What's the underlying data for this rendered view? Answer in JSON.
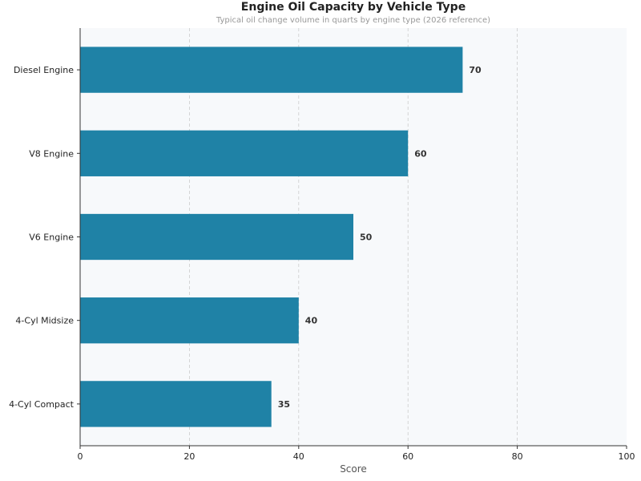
{
  "chart_data": {
    "type": "bar",
    "orientation": "horizontal",
    "title": "Engine Oil Capacity by Vehicle Type",
    "subtitle": "Typical oil change volume in quarts by engine type (2026 reference)",
    "xlabel": "Score",
    "ylabel": "",
    "xlim": [
      0,
      100
    ],
    "xticks": [
      0,
      20,
      40,
      60,
      80,
      100
    ],
    "grid": "vertical dashed",
    "categories": [
      "Diesel Engine",
      "V8 Engine",
      "V6 Engine",
      "4-Cyl Midsize",
      "4-Cyl Compact"
    ],
    "values": [
      70,
      60,
      50,
      40,
      35
    ],
    "bar_color": "#1f82a6",
    "plot_background": "#f7f9fb"
  }
}
